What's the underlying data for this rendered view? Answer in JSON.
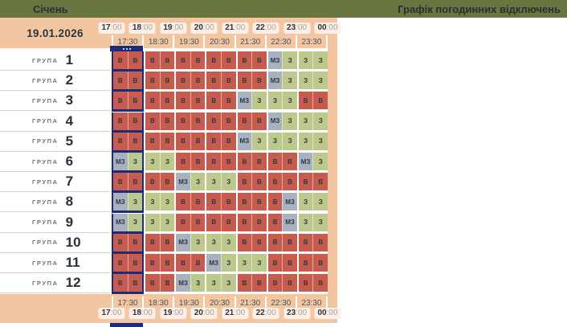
{
  "topbar": {
    "month": "Січень",
    "title": "Графік погодинних відключень"
  },
  "schedule": {
    "date": "19.01.2026",
    "group_label": "ГРУПА",
    "hours": [
      "17:00",
      "18:00",
      "19:00",
      "20:00",
      "21:00",
      "22:00",
      "23:00",
      "00:00"
    ],
    "half_hours": [
      "17:30",
      "18:30",
      "19:30",
      "20:30",
      "21:30",
      "22:30",
      "23:30"
    ],
    "highlighted_hour_index": 0,
    "legend": {
      "В": "#c75b4d",
      "З": "#bdc98c",
      "МЗ": "#a8b2bf"
    },
    "rows": [
      {
        "number": "1",
        "slots": [
          "В",
          "В",
          "В",
          "В",
          "В",
          "В",
          "В",
          "В",
          "В",
          "В",
          "МЗ",
          "З",
          "З",
          "З"
        ]
      },
      {
        "number": "2",
        "slots": [
          "В",
          "В",
          "В",
          "В",
          "В",
          "В",
          "В",
          "В",
          "В",
          "В",
          "МЗ",
          "З",
          "З",
          "З"
        ]
      },
      {
        "number": "3",
        "slots": [
          "В",
          "В",
          "В",
          "В",
          "В",
          "В",
          "В",
          "В",
          "МЗ",
          "З",
          "З",
          "З",
          "В",
          "В"
        ]
      },
      {
        "number": "4",
        "slots": [
          "В",
          "В",
          "В",
          "В",
          "В",
          "В",
          "В",
          "В",
          "В",
          "В",
          "МЗ",
          "З",
          "З",
          "З"
        ]
      },
      {
        "number": "5",
        "slots": [
          "В",
          "В",
          "В",
          "В",
          "В",
          "В",
          "В",
          "В",
          "МЗ",
          "З",
          "З",
          "З",
          "З",
          "З"
        ]
      },
      {
        "number": "6",
        "slots": [
          "МЗ",
          "З",
          "З",
          "З",
          "В",
          "В",
          "В",
          "В",
          "В",
          "В",
          "В",
          "В",
          "МЗ",
          "З"
        ]
      },
      {
        "number": "7",
        "slots": [
          "В",
          "В",
          "В",
          "В",
          "МЗ",
          "З",
          "З",
          "З",
          "В",
          "В",
          "В",
          "В",
          "В",
          "В"
        ]
      },
      {
        "number": "8",
        "slots": [
          "МЗ",
          "З",
          "З",
          "З",
          "В",
          "В",
          "В",
          "В",
          "В",
          "В",
          "В",
          "МЗ",
          "З",
          "З"
        ]
      },
      {
        "number": "9",
        "slots": [
          "МЗ",
          "З",
          "З",
          "З",
          "В",
          "В",
          "В",
          "В",
          "В",
          "В",
          "В",
          "МЗ",
          "З",
          "З"
        ]
      },
      {
        "number": "10",
        "slots": [
          "В",
          "В",
          "В",
          "В",
          "МЗ",
          "З",
          "З",
          "З",
          "В",
          "В",
          "В",
          "В",
          "В",
          "В"
        ]
      },
      {
        "number": "11",
        "slots": [
          "В",
          "В",
          "В",
          "В",
          "В",
          "В",
          "МЗ",
          "З",
          "З",
          "З",
          "В",
          "В",
          "В",
          "В"
        ]
      },
      {
        "number": "12",
        "slots": [
          "В",
          "В",
          "В",
          "В",
          "МЗ",
          "З",
          "З",
          "З",
          "В",
          "В",
          "В",
          "В",
          "В",
          "В"
        ]
      }
    ]
  },
  "colors": {
    "header_green": "#68753e",
    "band_peach": "#f3c6a2",
    "accent_navy": "#1d2b7d"
  }
}
